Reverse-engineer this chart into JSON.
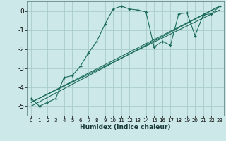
{
  "xlabel": "Humidex (Indice chaleur)",
  "bg_color": "#cce8e8",
  "grid_color": "#aacccc",
  "line_color": "#1a6b5a",
  "xlim": [
    -0.5,
    23.5
  ],
  "ylim": [
    -5.5,
    0.5
  ],
  "yticks": [
    0,
    -1,
    -2,
    -3,
    -4,
    -5
  ],
  "xticks": [
    0,
    1,
    2,
    3,
    4,
    5,
    6,
    7,
    8,
    9,
    10,
    11,
    12,
    13,
    14,
    15,
    16,
    17,
    18,
    19,
    20,
    21,
    22,
    23
  ],
  "series1_x": [
    0,
    1,
    2,
    3,
    4,
    5,
    6,
    7,
    8,
    9,
    10,
    11,
    12,
    13,
    14,
    15,
    16,
    17,
    18,
    19,
    20,
    21,
    22,
    23
  ],
  "series1_y": [
    -4.6,
    -5.0,
    -4.8,
    -4.6,
    -3.5,
    -3.4,
    -2.9,
    -2.2,
    -1.6,
    -0.7,
    0.1,
    0.25,
    0.1,
    0.05,
    -0.05,
    -1.9,
    -1.6,
    -1.8,
    -0.15,
    -0.1,
    -1.3,
    -0.2,
    -0.15,
    0.25
  ],
  "line2_x": [
    0,
    23
  ],
  "line2_y": [
    -4.8,
    0.25
  ],
  "line3_x": [
    0,
    23
  ],
  "line3_y": [
    -4.8,
    0.05
  ],
  "line4_x": [
    0,
    23
  ],
  "line4_y": [
    -5.0,
    0.25
  ]
}
